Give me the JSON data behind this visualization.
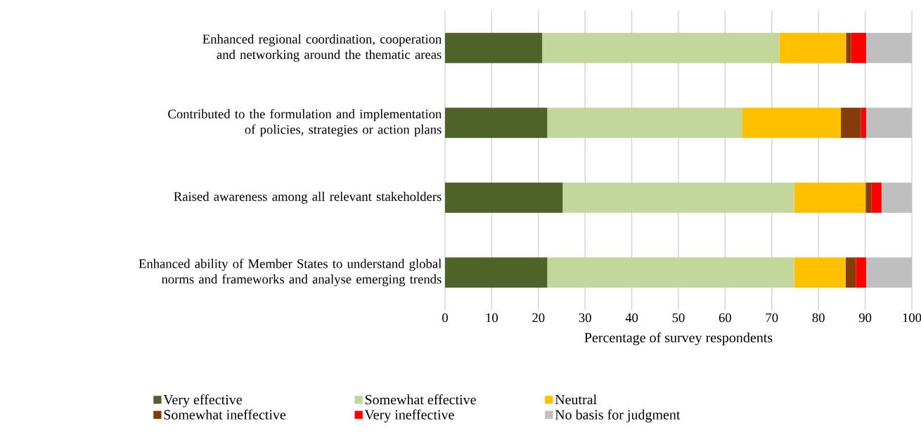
{
  "chart_data": {
    "type": "bar",
    "orientation": "horizontal",
    "stacked": true,
    "categories": [
      "Enhanced regional coordination, cooperation and networking around the thematic areas",
      "Contributed to the formulation and implementation of policies, strategies or action plans",
      "Raised awareness among all relevant stakeholders",
      "Enhanced ability of Member States to understand global norms and frameworks and analyse emerging trends"
    ],
    "series": [
      {
        "name": "Very effective",
        "color": "#4f6228",
        "values": [
          20.8,
          21.9,
          25.2,
          21.9
        ]
      },
      {
        "name": "Somewhat effective",
        "color": "#c3d69b",
        "values": [
          50.8,
          41.8,
          49.6,
          52.9
        ]
      },
      {
        "name": "Neutral",
        "color": "#ffc000",
        "values": [
          14.3,
          21.1,
          15.3,
          11.0
        ]
      },
      {
        "name": "Somewhat ineffective",
        "color": "#843c0c",
        "values": [
          1.1,
          4.3,
          1.2,
          2.2
        ]
      },
      {
        "name": "Very ineffective",
        "color": "#ff0000",
        "values": [
          3.2,
          1.1,
          2.2,
          2.2
        ]
      },
      {
        "name": "No basis for judgment",
        "color": "#bfbfbf",
        "values": [
          9.8,
          9.8,
          6.5,
          9.8
        ]
      }
    ],
    "xlabel": "Percentage of survey respondents",
    "xlim": [
      0,
      100
    ],
    "xticks": [
      0,
      10,
      20,
      30,
      40,
      50,
      60,
      70,
      80,
      90,
      100
    ],
    "grid": "x",
    "legend": "bottom"
  }
}
